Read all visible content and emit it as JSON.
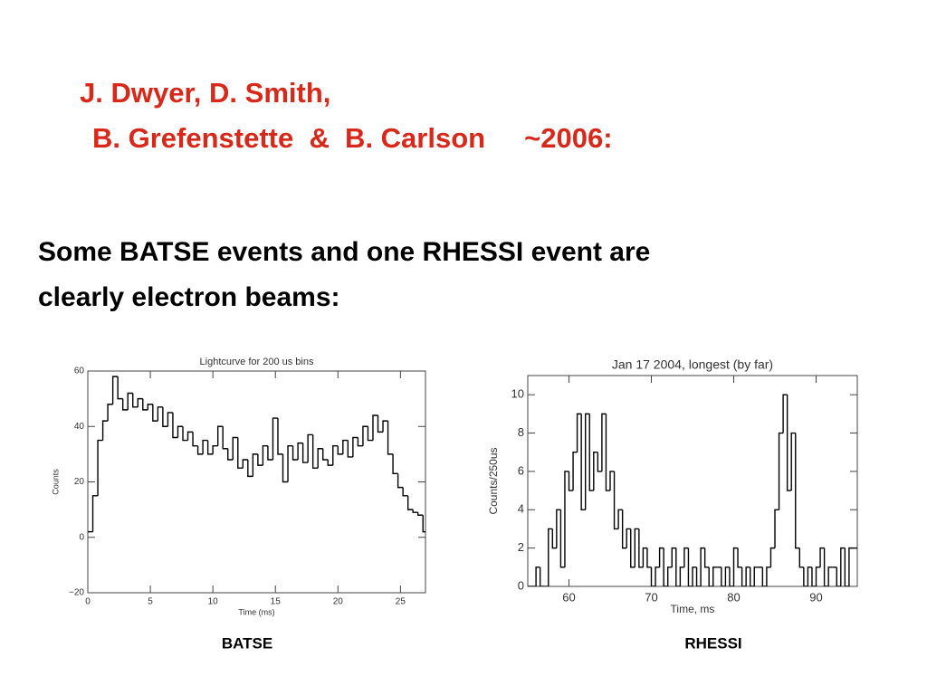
{
  "slide": {
    "title_lines": [
      "J. Dwyer, D. Smith,",
      "B. Grefenstette  &  B. Carlson     ~2006:"
    ],
    "body_lines": [
      "Some BATSE events and one RHESSI event are",
      "clearly electron beams:"
    ]
  },
  "chart_data": [
    {
      "type": "histogram",
      "title": "Lightcurve for 200 us bins",
      "x_label": "Time (ms)",
      "y_label": "Counts",
      "caption": "BATSE",
      "color": "#000000",
      "bins": [
        0,
        0.4,
        0.8,
        1.2,
        1.6,
        2,
        2.4,
        2.8,
        3.2,
        3.6,
        4,
        4.4,
        4.8,
        5.2,
        5.6,
        6,
        6.4,
        6.8,
        7.2,
        7.6,
        8,
        8.4,
        8.8,
        9.2,
        9.6,
        10,
        10.4,
        10.8,
        11.2,
        11.6,
        12,
        12.4,
        12.8,
        13.2,
        13.6,
        14,
        14.4,
        14.8,
        15.2,
        15.6,
        16,
        16.4,
        16.8,
        17.2,
        17.6,
        18,
        18.4,
        18.8,
        19.2,
        19.6,
        20,
        20.4,
        20.8,
        21.2,
        21.6,
        22,
        22.4,
        22.8,
        23.2,
        23.6,
        24,
        24.4,
        24.8,
        25.2,
        25.6,
        26,
        26.4,
        26.8,
        27.2
      ],
      "values": [
        2,
        15,
        35,
        42,
        48,
        58,
        50,
        46,
        52,
        47,
        50,
        46,
        48,
        42,
        47,
        40,
        45,
        36,
        40,
        35,
        38,
        33,
        30,
        35,
        30,
        33,
        40,
        32,
        28,
        36,
        25,
        28,
        22,
        30,
        26,
        33,
        28,
        43,
        30,
        20,
        33,
        28,
        34,
        27,
        37,
        25,
        32,
        28,
        26,
        33,
        30,
        35,
        29,
        36,
        33,
        40,
        35,
        44,
        38,
        42,
        30,
        23,
        18,
        15,
        10,
        9,
        8,
        2
      ],
      "xlim": [
        0,
        27
      ],
      "xticks": [
        0,
        5,
        10,
        15,
        20,
        25
      ],
      "ylim": [
        -20,
        60
      ],
      "yticks": [
        {
          "value": -20,
          "label": "−20"
        },
        0,
        20,
        40,
        60
      ]
    },
    {
      "type": "histogram",
      "title": "Jan 17 2004, longest (by far)",
      "x_label": "Time, ms",
      "y_label": "Counts/250us",
      "caption": "RHESSI",
      "color": "#000000",
      "bins": [
        55,
        55.5,
        56,
        56.5,
        57,
        57.5,
        58,
        58.5,
        59,
        59.5,
        60,
        60.5,
        61,
        61.5,
        62,
        62.5,
        63,
        63.5,
        64,
        64.5,
        65,
        65.5,
        66,
        66.5,
        67,
        67.5,
        68,
        68.5,
        69,
        69.5,
        70,
        70.5,
        71,
        71.5,
        72,
        72.5,
        73,
        73.5,
        74,
        74.5,
        75,
        75.5,
        76,
        76.5,
        77,
        77.5,
        78,
        78.5,
        79,
        79.5,
        80,
        80.5,
        81,
        81.5,
        82,
        82.5,
        83,
        83.5,
        84,
        84.5,
        85,
        85.5,
        86,
        86.5,
        87,
        87.5,
        88,
        88.5,
        89,
        89.5,
        90,
        90.5,
        91,
        91.5,
        92,
        92.5,
        93,
        93.5,
        94,
        94.5,
        95
      ],
      "values": [
        0,
        0,
        1,
        0,
        0,
        3,
        2,
        4,
        1,
        6,
        5,
        7,
        9,
        4,
        9,
        5,
        7,
        6,
        9,
        5,
        6,
        3,
        4,
        2,
        3,
        1,
        3,
        1,
        2,
        1,
        0,
        1,
        2,
        0,
        1,
        2,
        0,
        1,
        2,
        0,
        1,
        0,
        2,
        1,
        0,
        1,
        1,
        0,
        1,
        0,
        2,
        1,
        0,
        1,
        0,
        1,
        1,
        0,
        1,
        2,
        4,
        8,
        10,
        5,
        8,
        2,
        1,
        0,
        1,
        0,
        1,
        2,
        0,
        1,
        1,
        0,
        2,
        0,
        2,
        2
      ],
      "xlim": [
        55,
        95
      ],
      "xticks": [
        60,
        70,
        80,
        90
      ],
      "ylim": [
        0,
        11
      ],
      "yticks": [
        0,
        2,
        4,
        6,
        8,
        10
      ]
    }
  ]
}
